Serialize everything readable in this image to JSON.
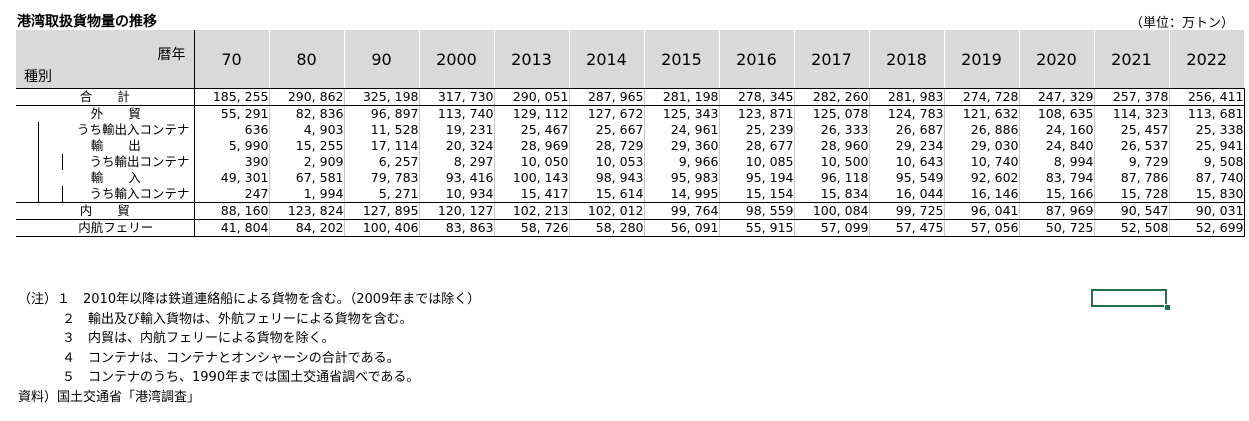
{
  "title": "港湾取扱貨物量の推移",
  "unit": "（単位：万トン）",
  "header": {
    "year_label": "暦年",
    "kind_label": "種別"
  },
  "years": [
    "70",
    "80",
    "90",
    "2000",
    "2013",
    "2014",
    "2015",
    "2016",
    "2017",
    "2018",
    "2019",
    "2020",
    "2021",
    "2022"
  ],
  "rows": [
    {
      "label": "合　　計",
      "values": [
        "185, 255",
        "290, 862",
        "325, 198",
        "317, 730",
        "290, 051",
        "287, 965",
        "281, 198",
        "278, 345",
        "282, 260",
        "281, 983",
        "274, 728",
        "247, 329",
        "257, 378",
        "256, 411"
      ]
    },
    {
      "label": "外　　貿",
      "values": [
        "55, 291",
        "82, 836",
        "96, 897",
        "113, 740",
        "129, 112",
        "127, 672",
        "125, 343",
        "123, 871",
        "125, 078",
        "124, 783",
        "121, 632",
        "108, 635",
        "114, 323",
        "113, 681"
      ]
    },
    {
      "label": "うち輸出入コンテナ",
      "values": [
        "636",
        "4, 903",
        "11, 528",
        "19, 231",
        "25, 467",
        "25, 667",
        "24, 961",
        "25, 239",
        "26, 333",
        "26, 687",
        "26, 886",
        "24, 160",
        "25, 457",
        "25, 338"
      ]
    },
    {
      "label": "輸　　出",
      "values": [
        "5, 990",
        "15, 255",
        "17, 114",
        "20, 324",
        "28, 969",
        "28, 729",
        "29, 360",
        "28, 677",
        "28, 960",
        "29, 234",
        "29, 030",
        "24, 840",
        "26, 537",
        "25, 941"
      ]
    },
    {
      "label": "うち輸出コンテナ",
      "values": [
        "390",
        "2, 909",
        "6, 257",
        "8, 297",
        "10, 050",
        "10, 053",
        "9, 966",
        "10, 085",
        "10, 500",
        "10, 643",
        "10, 740",
        "8, 994",
        "9, 729",
        "9, 508"
      ]
    },
    {
      "label": "輸　　入",
      "values": [
        "49, 301",
        "67, 581",
        "79, 783",
        "93, 416",
        "100, 143",
        "98, 943",
        "95, 983",
        "95, 194",
        "96, 118",
        "95, 549",
        "92, 602",
        "83, 794",
        "87, 786",
        "87, 740"
      ]
    },
    {
      "label": "うち輸入コンテナ",
      "values": [
        "247",
        "1, 994",
        "5, 271",
        "10, 934",
        "15, 417",
        "15, 614",
        "14, 995",
        "15, 154",
        "15, 834",
        "16, 044",
        "16, 146",
        "15, 166",
        "15, 728",
        "15, 830"
      ]
    },
    {
      "label": "内　　貿",
      "values": [
        "88, 160",
        "123, 824",
        "127, 895",
        "120, 127",
        "102, 213",
        "102, 012",
        "99, 764",
        "98, 559",
        "100, 084",
        "99, 725",
        "96, 041",
        "87, 969",
        "90, 547",
        "90, 031"
      ]
    },
    {
      "label": "内航フェリー",
      "values": [
        "41, 804",
        "84, 202",
        "100, 406",
        "83, 863",
        "58, 726",
        "58, 280",
        "56, 091",
        "55, 915",
        "57, 099",
        "57, 475",
        "57, 056",
        "50, 725",
        "52, 508",
        "52, 699"
      ]
    }
  ],
  "notes": [
    "（注）１　2010年以降は鉄道連絡船による貨物を含む。（2009年までは除く）",
    "２　輸出及び輸入貨物は、外航フェリーによる貨物を含む。",
    "３　内貿は、内航フェリーによる貨物を除く。",
    "４　コンテナは、コンテナとオンシャーシの合計である。",
    "５　コンテナのうち、1990年までは国土交通省調べである。",
    "資料）国土交通省「港湾調査」"
  ]
}
